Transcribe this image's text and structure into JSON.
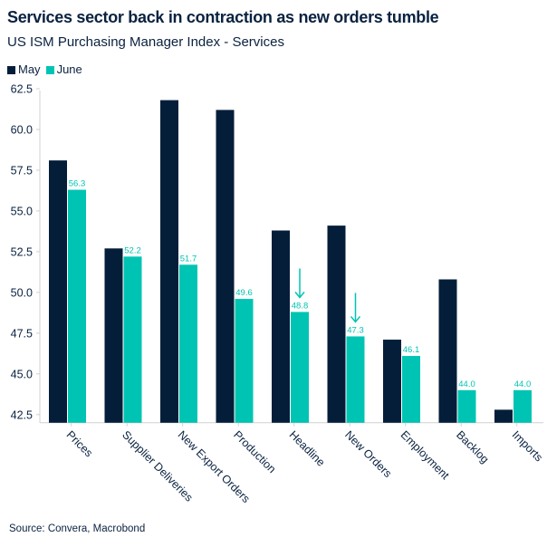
{
  "chart_data": {
    "type": "bar",
    "title": "Services sector back in contraction as new orders tumble",
    "subtitle": "US ISM Purchasing Manager Index - Services",
    "categories": [
      "Prices",
      "Supplier Deliveries",
      "New Export Orders",
      "Production",
      "Headline",
      "New Orders",
      "Employment",
      "Backlog",
      "Imports"
    ],
    "series": [
      {
        "name": "May",
        "color": "#041e3a",
        "values": [
          58.1,
          52.7,
          61.8,
          61.2,
          53.8,
          54.1,
          47.1,
          50.8,
          42.8
        ]
      },
      {
        "name": "June",
        "color": "#00c4b3",
        "values": [
          56.3,
          52.2,
          51.7,
          49.6,
          48.8,
          47.3,
          46.1,
          44.0,
          44.0
        ],
        "data_labels": [
          "56.3",
          "52.2",
          "51.7",
          "49.6",
          "48.8",
          "47.3",
          "46.1",
          "44.0",
          "44.0"
        ]
      }
    ],
    "yticks": [
      "42.5",
      "45.0",
      "47.5",
      "50.0",
      "52.5",
      "55.0",
      "57.5",
      "60.0",
      "62.5"
    ],
    "ylim": [
      42,
      63
    ],
    "grid": false,
    "legend": "top-left",
    "annotations": [
      {
        "category": "Headline",
        "type": "down-arrow"
      },
      {
        "category": "New Orders",
        "type": "down-arrow"
      }
    ],
    "source": "Source: Convera, Macrobond"
  }
}
